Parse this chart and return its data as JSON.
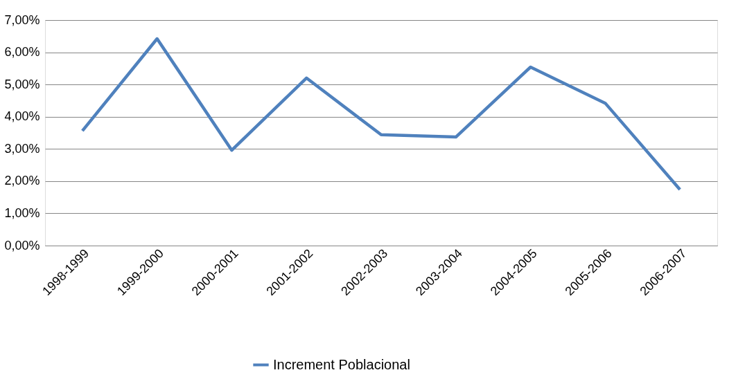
{
  "chart_data": {
    "type": "line",
    "categories": [
      "1998-1999",
      "1999-2000",
      "2000-2001",
      "2001-2002",
      "2002-2003",
      "2003-2004",
      "2004-2005",
      "2005-2006",
      "2006-2007"
    ],
    "series": [
      {
        "name": "Increment Poblacional",
        "color": "#4f81bd",
        "values": [
          3.56,
          6.42,
          2.96,
          5.2,
          3.44,
          3.37,
          5.54,
          4.42,
          1.74
        ]
      }
    ],
    "ylim": [
      0,
      7
    ],
    "yticks": [
      {
        "value": 0,
        "label": "0,00%"
      },
      {
        "value": 1,
        "label": "1,00%"
      },
      {
        "value": 2,
        "label": "2,00%"
      },
      {
        "value": 3,
        "label": "3,00%"
      },
      {
        "value": 4,
        "label": "4,00%"
      },
      {
        "value": 5,
        "label": "5,00%"
      },
      {
        "value": 6,
        "label": "6,00%"
      },
      {
        "value": 7,
        "label": "7,00%"
      }
    ],
    "grid": "y",
    "legend": "bottom",
    "marker": "none",
    "line_style": "solid"
  }
}
